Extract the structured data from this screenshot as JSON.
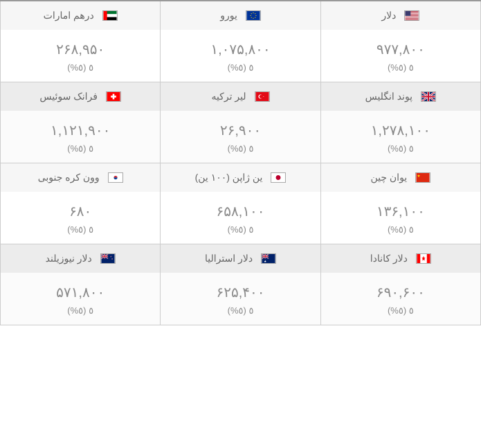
{
  "colors": {
    "border": "#cccccc",
    "topBorder": "#999999",
    "headerBgOdd": "#f6f6f6",
    "headerBgEven": "#ececec",
    "text": "#666666",
    "valueText": "#8a8a8a"
  },
  "rows": [
    {
      "cells": [
        {
          "name": "دلار",
          "flag": "us",
          "price": "۹۷۷,۸۰۰",
          "change": "٥ (٥%)"
        },
        {
          "name": "یورو",
          "flag": "eu",
          "price": "۱,۰۷۵,۸۰۰",
          "change": "٥ (٥%)"
        },
        {
          "name": "درهم امارات",
          "flag": "ae",
          "price": "۲۶۸,۹۵۰",
          "change": "٥ (٥%)"
        }
      ]
    },
    {
      "cells": [
        {
          "name": "پوند انگلیس",
          "flag": "gb",
          "price": "۱,۲۷۸,۱۰۰",
          "change": "٥ (٥%)"
        },
        {
          "name": "لیر ترکیه",
          "flag": "tr",
          "price": "۲۶,۹۰۰",
          "change": "٥ (٥%)"
        },
        {
          "name": "فرانک سوئیس",
          "flag": "ch",
          "price": "۱,۱۲۱,۹۰۰",
          "change": "٥ (٥%)"
        }
      ]
    },
    {
      "cells": [
        {
          "name": "یوان چین",
          "flag": "cn",
          "price": "۱۳۶,۱۰۰",
          "change": "٥ (٥%)"
        },
        {
          "name": "ین ژاپن (۱۰۰ ین)",
          "flag": "jp",
          "price": "۶۵۸,۱۰۰",
          "change": "٥ (٥%)"
        },
        {
          "name": "وون کره جنوبی",
          "flag": "kr",
          "price": "۶۸۰",
          "change": "٥ (٥%)"
        }
      ]
    },
    {
      "cells": [
        {
          "name": "دلار کانادا",
          "flag": "ca",
          "price": "۶۹۰,۶۰۰",
          "change": "٥ (٥%)"
        },
        {
          "name": "دلار استرالیا",
          "flag": "au",
          "price": "۶۲۵,۴۰۰",
          "change": "٥ (٥%)"
        },
        {
          "name": "دلار نیوزیلند",
          "flag": "nz",
          "price": "۵۷۱,۸۰۰",
          "change": "٥ (٥%)"
        }
      ]
    }
  ],
  "flagSvgs": {
    "us": "<svg viewBox='0 0 22 15'><rect width='22' height='15' fill='#b22234'/><rect y='1.15' width='22' height='1.15' fill='#fff'/><rect y='3.46' width='22' height='1.15' fill='#fff'/><rect y='5.77' width='22' height='1.15' fill='#fff'/><rect y='8.08' width='22' height='1.15' fill='#fff'/><rect y='10.38' width='22' height='1.15' fill='#fff'/><rect y='12.69' width='22' height='1.15' fill='#fff'/><rect width='9' height='8.08' fill='#3c3b6e'/></svg>",
    "eu": "<svg viewBox='0 0 22 15'><rect width='22' height='15' fill='#003399'/><g fill='#ffcc00'><circle cx='11' cy='3' r='0.7'/><circle cx='11' cy='12' r='0.7'/><circle cx='6.5' cy='7.5' r='0.7'/><circle cx='15.5' cy='7.5' r='0.7'/><circle cx='7.8' cy='4.3' r='0.7'/><circle cx='14.2' cy='4.3' r='0.7'/><circle cx='7.8' cy='10.7' r='0.7'/><circle cx='14.2' cy='10.7' r='0.7'/></g></svg>",
    "ae": "<svg viewBox='0 0 22 15'><rect width='22' height='5' fill='#00732f'/><rect y='5' width='22' height='5' fill='#fff'/><rect y='10' width='22' height='5' fill='#000'/><rect width='6' height='15' fill='#ff0000'/></svg>",
    "gb": "<svg viewBox='0 0 22 15'><rect width='22' height='15' fill='#012169'/><path d='M0,0 L22,15 M22,0 L0,15' stroke='#fff' stroke-width='3'/><path d='M0,0 L22,15 M22,0 L0,15' stroke='#c8102e' stroke-width='1.2'/><rect x='9' width='4' height='15' fill='#fff'/><rect y='5.5' width='22' height='4' fill='#fff'/><rect x='9.8' width='2.4' height='15' fill='#c8102e'/><rect y='6.3' width='22' height='2.4' fill='#c8102e'/></svg>",
    "tr": "<svg viewBox='0 0 22 15'><rect width='22' height='15' fill='#e30a17'/><circle cx='8' cy='7.5' r='3.5' fill='#fff'/><circle cx='9' cy='7.5' r='2.9' fill='#e30a17'/><polygon points='12,7.5 13.5,8 13,6.5 14,7.8 12.5,7' fill='#fff'/></svg>",
    "ch": "<svg viewBox='0 0 22 15'><rect width='22' height='15' fill='#ff0000'/><rect x='9.5' y='3' width='3' height='9' fill='#fff'/><rect x='6.5' y='6' width='9' height='3' fill='#fff'/></svg>",
    "cn": "<svg viewBox='0 0 22 15'><rect width='22' height='15' fill='#de2910'/><polygon points='4,2 4.6,3.8 6.5,3.8 5,5 5.5,6.8 4,5.7 2.5,6.8 3,5 1.5,3.8 3.4,3.8' fill='#ffde00'/></svg>",
    "jp": "<svg viewBox='0 0 22 15'><rect width='22' height='15' fill='#fff'/><circle cx='11' cy='7.5' r='4' fill='#bc002d'/></svg>",
    "kr": "<svg viewBox='0 0 22 15'><rect width='22' height='15' fill='#fff'/><circle cx='11' cy='7.5' r='3' fill='#cd2e3a'/><path d='M8,7.5 A3,3 0 0,0 14,7.5' fill='#0047a0'/></svg>",
    "ca": "<svg viewBox='0 0 22 15'><rect width='22' height='15' fill='#fff'/><rect width='5.5' height='15' fill='#ff0000'/><rect x='16.5' width='5.5' height='15' fill='#ff0000'/><polygon points='11,3 12,6 14,6 12.5,8 13,11 11,9.5 9,11 9.5,8 8,6 10,6' fill='#ff0000'/></svg>",
    "au": "<svg viewBox='0 0 22 15'><rect width='22' height='15' fill='#012169'/><rect width='11' height='7.5' fill='#012169'/><path d='M0,0 L11,7.5 M11,0 L0,7.5' stroke='#fff' stroke-width='1.5'/><path d='M0,0 L11,7.5 M11,0 L0,7.5' stroke='#c8102e' stroke-width='0.6'/><rect x='4.5' width='2' height='7.5' fill='#fff'/><rect y='2.75' width='11' height='2' fill='#fff'/><rect x='4.9' width='1.2' height='7.5' fill='#c8102e'/><rect y='3.15' width='11' height='1.2' fill='#c8102e'/><polygon points='5.5,10 6,11.5 7.5,11.5 6.3,12.5 6.8,14 5.5,13 4.2,14 4.7,12.5 3.5,11.5 5,11.5' fill='#fff'/></svg>",
    "nz": "<svg viewBox='0 0 22 15'><rect width='22' height='15' fill='#012169'/><rect width='11' height='7.5' fill='#012169'/><path d='M0,0 L11,7.5 M11,0 L0,7.5' stroke='#fff' stroke-width='1.5'/><path d='M0,0 L11,7.5 M11,0 L0,7.5' stroke='#c8102e' stroke-width='0.6'/><rect x='4.5' width='2' height='7.5' fill='#fff'/><rect y='2.75' width='11' height='2' fill='#fff'/><rect x='4.9' width='1.2' height='7.5' fill='#c8102e'/><rect y='3.15' width='11' height='1.2' fill='#c8102e'/><polygon points='16,3 16.3,3.8 17,3.8 16.5,4.3 16.7,5 16,4.6 15.3,5 15.5,4.3 15,3.8 15.7,3.8' fill='#c8102e' stroke='#fff' stroke-width='0.2'/><polygon points='18,7 18.3,7.8 19,7.8 18.5,8.3 18.7,9 18,8.6 17.3,9 17.5,8.3 17,7.8 17.7,7.8' fill='#c8102e' stroke='#fff' stroke-width='0.2'/></svg>"
  }
}
